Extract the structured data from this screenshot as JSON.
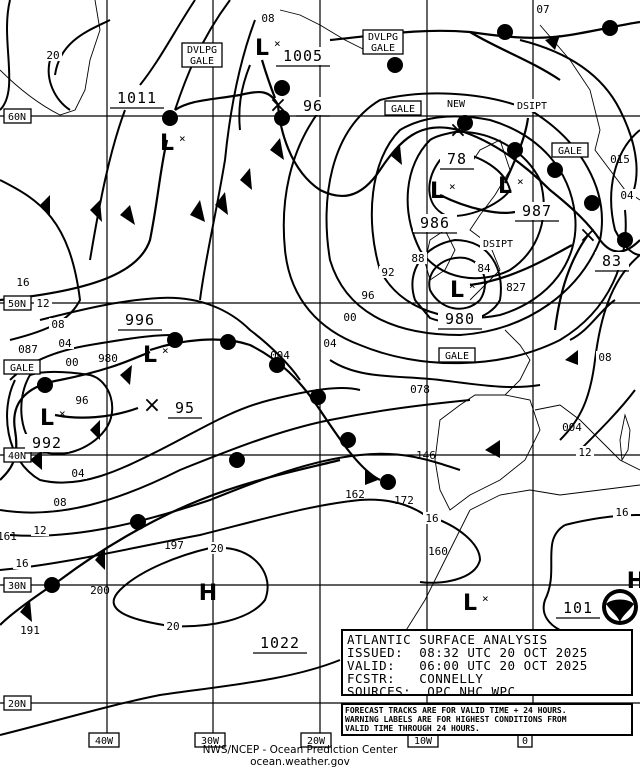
{
  "map": {
    "lat_labels": [
      "60N",
      "50N",
      "40N",
      "30N",
      "20N"
    ],
    "lon_labels": [
      "40W",
      "30W",
      "20W",
      "10W",
      "0"
    ],
    "centers": [
      "L",
      "L",
      "L",
      "L",
      "L",
      "L",
      "L",
      "L",
      "H",
      "H"
    ],
    "central_pressures": [
      "1011",
      "1005",
      "96",
      "78",
      "986",
      "987",
      "83",
      "980",
      "996",
      "95",
      "992",
      "1022",
      "101"
    ],
    "isobar_labels": [
      "20",
      "08",
      "16",
      "12",
      "08",
      "04",
      "00",
      "96",
      "04",
      "08",
      "12",
      "16",
      "20",
      "20",
      "92",
      "96",
      "00",
      "04",
      "88",
      "84",
      "08",
      "12",
      "16",
      "16",
      "04"
    ],
    "station_labels": [
      "980",
      "004",
      "087",
      "078",
      "146",
      "162",
      "172",
      "160",
      "197",
      "200",
      "191",
      "015",
      "827",
      "004",
      "161",
      "07"
    ],
    "warning_boxes": [
      {
        "line1": "DVLPG",
        "line2": "GALE"
      },
      {
        "line1": "DVLPG",
        "line2": "GALE"
      },
      {
        "line1": "GALE",
        "line2": ""
      },
      {
        "line1": "GALE",
        "line2": ""
      },
      {
        "line1": "GALE",
        "line2": ""
      },
      {
        "line1": "GALE",
        "line2": ""
      }
    ],
    "annotations": [
      "NEW",
      "DSIPT",
      "DSIPT"
    ]
  },
  "info": {
    "title": "ATLANTIC SURFACE ANALYSIS",
    "issued": "ISSUED:  08:32 UTC 20 OCT 2025",
    "valid": "VALID:   06:00 UTC 20 OCT 2025",
    "forecaster": "FCSTR:   CONNELLY",
    "sources": "SOURCES:  OPC NHC WPC"
  },
  "note": {
    "line1": "FORECAST TRACKS ARE FOR VALID TIME + 24 HOURS.",
    "line2": "WARNING LABELS ARE FOR HIGHEST CONDITIONS FROM",
    "line3": "VALID TIME THROUGH 24 HOURS."
  },
  "footer": {
    "line1": "NWS/NCEP - Ocean Prediction Center",
    "line2": "ocean.weather.gov"
  },
  "logo": "NOAA"
}
